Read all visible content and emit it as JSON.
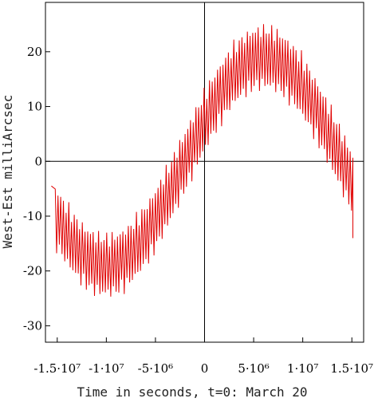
{
  "chart_data": {
    "type": "line",
    "title": "",
    "xlabel": "Time in seconds, t=0: March 20",
    "ylabel": "West-Est milliArcsec",
    "xlim": [
      -16200000.0,
      16200000.0
    ],
    "ylim": [
      -33,
      29
    ],
    "x_tick_labels": [
      "-1.5·10⁷",
      "-1·10⁷",
      "-5·10⁶",
      "0",
      "5·10⁶",
      "1·10⁷",
      "1.5·10⁷"
    ],
    "y_tick_labels": [
      "-30",
      "-20",
      "-10",
      "0",
      "10",
      "20"
    ],
    "series": [
      {
        "color": "#e00000",
        "envelope": {
          "x_range": [
            -15200000.0,
            15100000.0
          ],
          "trend": {
            "amplitude": 19,
            "min_at_x": -10000000.0,
            "max_at_x": 6000000.0,
            "period": 32000000.0
          },
          "oscillation_amplitude": 6.5,
          "oscillation_cycles": 110
        },
        "tail": {
          "x": -15600000.0,
          "y": -4.5
        },
        "end": {
          "x": 15100000.0,
          "y": -14
        }
      }
    ],
    "grid": false,
    "zero_lines": true
  }
}
